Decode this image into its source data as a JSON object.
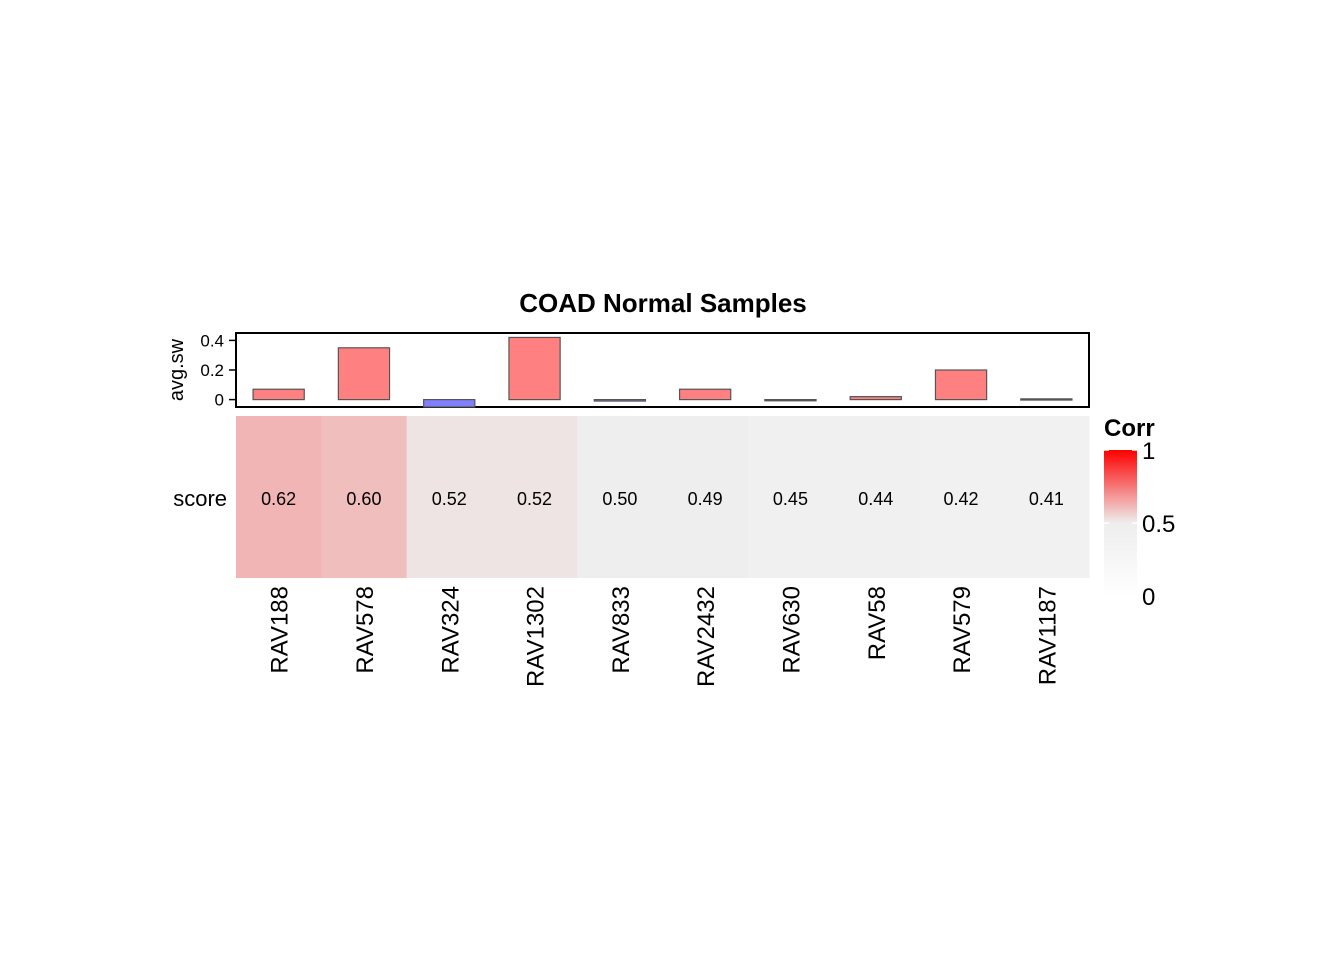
{
  "chart_data": {
    "type": "heatmap",
    "title": "COAD Normal Samples",
    "categories": [
      "RAV188",
      "RAV578",
      "RAV324",
      "RAV1302",
      "RAV833",
      "RAV2432",
      "RAV630",
      "RAV58",
      "RAV579",
      "RAV1187"
    ],
    "heatmap": {
      "row_label": "score",
      "values": [
        0.62,
        0.6,
        0.52,
        0.52,
        0.5,
        0.49,
        0.45,
        0.44,
        0.42,
        0.41
      ],
      "value_labels": [
        "0.62",
        "0.60",
        "0.52",
        "0.52",
        "0.50",
        "0.49",
        "0.45",
        "0.44",
        "0.42",
        "0.41"
      ]
    },
    "top_annotation": {
      "type": "bar",
      "ylabel": "avg.sw",
      "ylim": [
        -0.05,
        0.45
      ],
      "yticks": [
        0,
        0.2,
        0.4
      ],
      "ytick_labels": [
        "0",
        "0.2",
        "0.4"
      ],
      "values": [
        0.07,
        0.35,
        -0.05,
        0.42,
        -0.01,
        0.07,
        -0.005,
        0.02,
        0.2,
        0.005
      ],
      "positive_color": "#FF8080",
      "negative_color": "#8080FF",
      "border_color": "#555555"
    },
    "legend": {
      "title": "Corr",
      "ticks": [
        0,
        0.5,
        1
      ],
      "tick_labels": [
        "0",
        "0.5",
        "1"
      ],
      "colors": {
        "low": "#FFFFFF",
        "mid": "#EEEEEE",
        "high": "#FF0000"
      },
      "position": "right"
    }
  }
}
